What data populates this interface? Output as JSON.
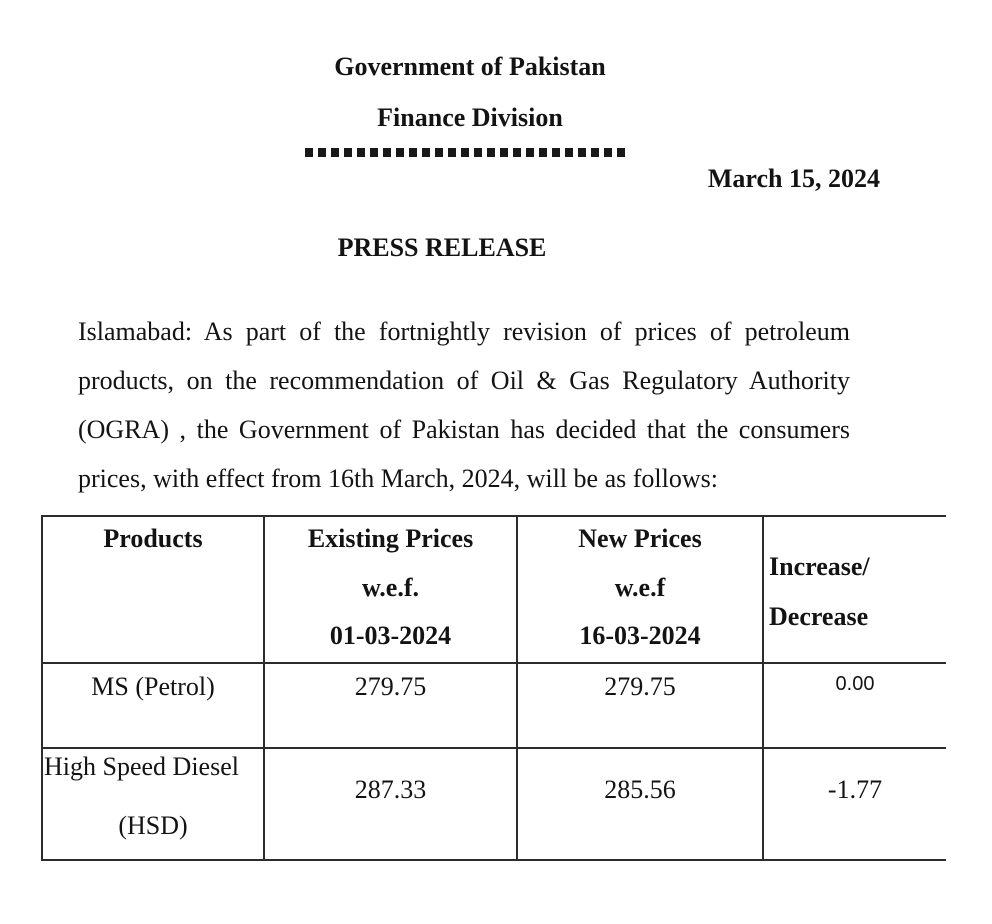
{
  "header": {
    "title_line1": "Government of Pakistan",
    "title_line2": "Finance Division",
    "date": "March 15, 2024",
    "press_release": "PRESS RELEASE"
  },
  "body": {
    "paragraph": "Islamabad: As part of the fortnightly revision of prices of petroleum products, on the recommendation of Oil & Gas Regulatory Authority (OGRA) , the Government of Pakistan has decided that the consumers prices, with effect from 16th March, 2024, will be as follows:"
  },
  "table": {
    "headers": {
      "products": "Products",
      "existing": [
        "Existing Prices",
        "w.e.f.",
        "01-03-2024"
      ],
      "new": [
        "New Prices",
        "w.e.f",
        "16-03-2024"
      ],
      "change": [
        "Increase/",
        "Decrease"
      ]
    },
    "rows": [
      {
        "product": [
          "MS (Petrol)"
        ],
        "existing": "279.75",
        "new": "279.75",
        "change": "0.00"
      },
      {
        "product": [
          "High Speed Diesel",
          "(HSD)"
        ],
        "existing": "287.33",
        "new": "285.56",
        "change": "-1.77"
      }
    ]
  }
}
